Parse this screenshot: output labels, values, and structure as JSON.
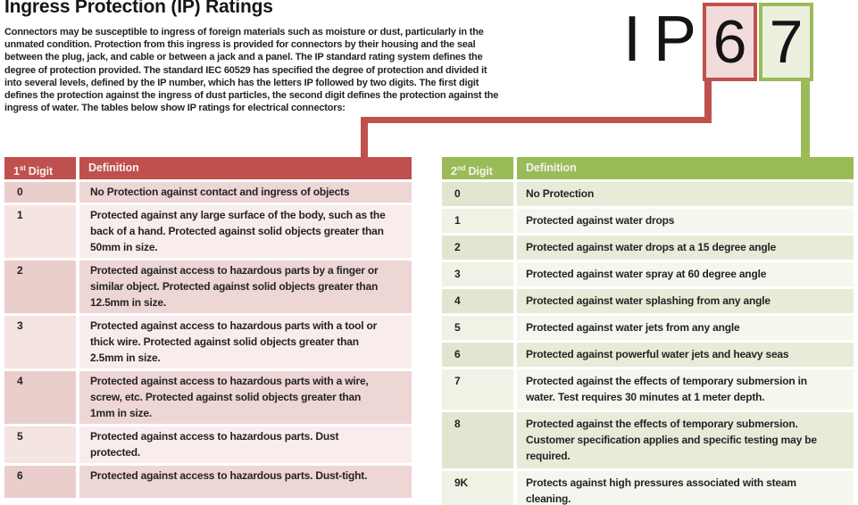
{
  "title": "Ingress Protection (IP) Ratings",
  "intro_lines": [
    "Connectors may be susceptible to ingress of foreign materials such as moisture or dust, particularly in the",
    "unmated condition. Protection from this ingress is provided for connectors by their housing and the seal",
    "between the plug, jack, and cable or between a jack and a panel. The IP standard rating system defines the",
    "degree of protection provided. The standard IEC 60529 has specified the degree of protection and divided it",
    "into several levels, defined by the IP number, which has the letters IP followed by two digits. The first digit",
    "defines the protection against the ingress of dust particles, the second digit defines the protection against the",
    "ingress of water. The tables below show IP ratings for electrical connectors:"
  ],
  "ip_graphic": {
    "prefix": "IP",
    "first_digit": "6",
    "second_digit": "7"
  },
  "colors": {
    "red_accent": "#c0504d",
    "red_box_fill": "#f2dcdb",
    "green_accent": "#9bbb59",
    "green_box_fill": "#ebf1de",
    "pink_dark": "#eed6d4",
    "pink_dark_digit": "#e9cecc",
    "pink_light": "#f8edec",
    "pink_light_digit": "#f4e4e2",
    "green_dark": "#e7ecd9",
    "green_dark_digit": "#e0e6d0",
    "green_light": "#f4f7ee",
    "green_light_digit": "#eff3e6"
  },
  "first_digit_table": {
    "header": {
      "num": "1",
      "suffix": "st",
      "word": "Digit",
      "definition": "Definition"
    },
    "rows": [
      {
        "digit": "0",
        "definition": [
          "No Protection against contact and ingress of objects"
        ]
      },
      {
        "digit": "1",
        "definition": [
          "Protected against any large surface of the body, such as the",
          "back of a hand. Protected against solid objects greater than",
          "50mm in size."
        ]
      },
      {
        "digit": "2",
        "definition": [
          "Protected against access to hazardous parts by a finger or",
          "similar object. Protected against solid objects greater than",
          "12.5mm in size."
        ]
      },
      {
        "digit": "3",
        "definition": [
          "Protected against access to hazardous parts with a tool or",
          "thick wire. Protected against solid objects greater than",
          "2.5mm in size."
        ]
      },
      {
        "digit": "4",
        "definition": [
          "Protected against access to hazardous parts with a wire,",
          "screw, etc. Protected against solid objects greater than",
          "1mm in size."
        ]
      },
      {
        "digit": "5",
        "definition": [
          "Protected against access to hazardous parts. Dust",
          "protected."
        ]
      },
      {
        "digit": "6",
        "definition": [
          "Protected against access to hazardous parts. Dust-tight."
        ]
      }
    ]
  },
  "second_digit_table": {
    "header": {
      "num": "2",
      "suffix": "nd",
      "word": "Digit",
      "definition": "Definition"
    },
    "rows": [
      {
        "digit": "0",
        "definition": [
          "No Protection"
        ]
      },
      {
        "digit": "1",
        "definition": [
          "Protected against water drops"
        ]
      },
      {
        "digit": "2",
        "definition": [
          "Protected against water drops at a 15 degree angle"
        ]
      },
      {
        "digit": "3",
        "definition": [
          "Protected against water spray at 60 degree angle"
        ]
      },
      {
        "digit": "4",
        "definition": [
          "Protected against water splashing from any angle"
        ]
      },
      {
        "digit": "5",
        "definition": [
          "Protected against water jets from any angle"
        ]
      },
      {
        "digit": "6",
        "definition": [
          "Protected against powerful water jets and heavy seas"
        ]
      },
      {
        "digit": "7",
        "definition": [
          "Protected against the effects of temporary submersion in",
          "water. Test requires 30 minutes at 1 meter depth."
        ]
      },
      {
        "digit": "8",
        "definition": [
          "Protected against the effects of temporary submersion.",
          "Customer specification applies and specific testing may be",
          "required."
        ]
      },
      {
        "digit": "9K",
        "definition": [
          "Protects against high pressures associated with steam",
          "cleaning."
        ]
      }
    ]
  }
}
